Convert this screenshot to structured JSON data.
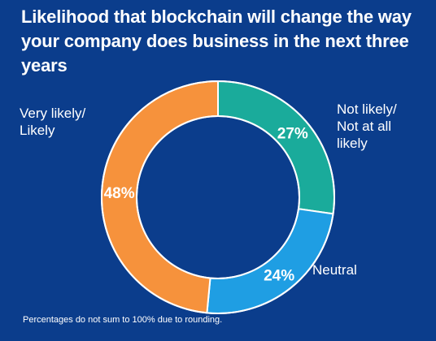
{
  "title": "Likelihood that blockchain will change the way your company does business in the next three years",
  "footnote": "Percentages do not sum to 100% due to rounding.",
  "chart_data": {
    "type": "pie",
    "donut": true,
    "title": "Likelihood that blockchain will change the way your company does business in the next three years",
    "categories": [
      "Not likely/ Not at all likely",
      "Neutral",
      "Very likely/ Likely"
    ],
    "values": [
      27,
      24,
      48
    ],
    "value_labels": [
      "27%",
      "24%",
      "48%"
    ],
    "label_lines": [
      [
        "Not likely/",
        "Not at all",
        "likely"
      ],
      [
        "Neutral"
      ],
      [
        "Very likely/",
        "Likely"
      ]
    ],
    "colors": [
      "#1aab9b",
      "#1f9ee3",
      "#f6923c"
    ],
    "background": "#0b3d8c"
  }
}
